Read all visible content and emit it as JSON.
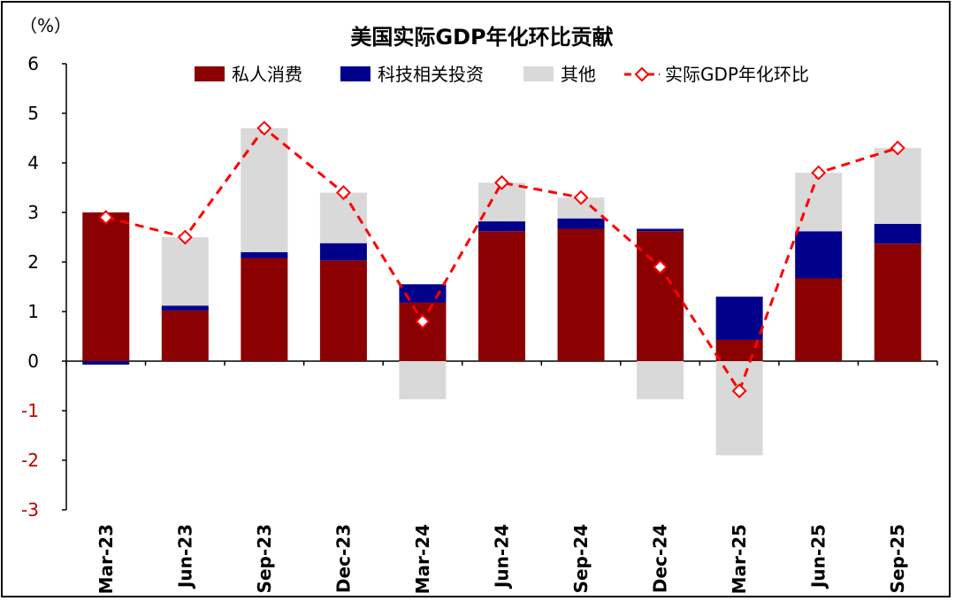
{
  "chart_data": {
    "type": "bar",
    "title": "美国实际GDP年化环比贡献",
    "unit_label": "（%）",
    "categories": [
      "Mar-23",
      "Jun-23",
      "Sep-23",
      "Dec-23",
      "Mar-24",
      "Jun-24",
      "Sep-24",
      "Dec-24",
      "Mar-25",
      "Jun-25",
      "Sep-25"
    ],
    "ylim": [
      -3,
      6
    ],
    "yticks": [
      6,
      5,
      4,
      3,
      2,
      1,
      0,
      -1,
      -2,
      -3
    ],
    "series": [
      {
        "name": "私人消费",
        "kind": "stacked-bar",
        "color": "#8b0000",
        "values": [
          3.0,
          1.02,
          2.08,
          2.03,
          1.18,
          2.62,
          2.67,
          2.62,
          0.43,
          1.67,
          2.37
        ]
      },
      {
        "name": "科技相关投资",
        "kind": "stacked-bar",
        "color": "#00008b",
        "values": [
          -0.07,
          0.1,
          0.12,
          0.35,
          0.37,
          0.2,
          0.21,
          0.05,
          0.87,
          0.95,
          0.4
        ]
      },
      {
        "name": "其他",
        "kind": "stacked-bar",
        "color": "#d9d9d9",
        "values": [
          0.0,
          1.38,
          2.5,
          1.02,
          -0.77,
          0.78,
          0.42,
          -0.77,
          -1.9,
          1.18,
          1.53
        ]
      },
      {
        "name": "实际GDP年化环比",
        "kind": "line",
        "color": "#ff0000",
        "values": [
          2.9,
          2.5,
          4.7,
          3.4,
          0.8,
          3.6,
          3.3,
          1.9,
          -0.6,
          3.8,
          4.3
        ]
      }
    ],
    "legend": "top"
  }
}
